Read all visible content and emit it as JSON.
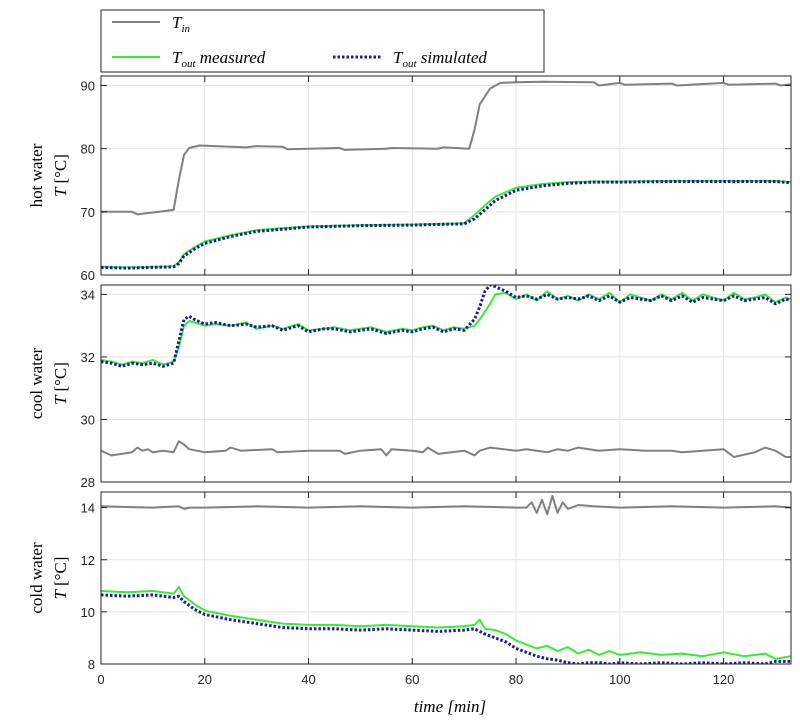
{
  "chart_data": [
    {
      "type": "line",
      "panel": "hot",
      "ylabel": "hot water",
      "ylabel_var": "T",
      "ylabel_unit": "[°C]",
      "ylim": [
        60,
        91.5
      ],
      "yticks": [
        60,
        70,
        80,
        90
      ],
      "xlim": [
        0,
        133
      ],
      "xticks": [
        0,
        20,
        40,
        60,
        80,
        100,
        120
      ],
      "grid": true,
      "series": [
        {
          "name": "T_in",
          "color": "#808080",
          "style": "solid",
          "x": [
            0,
            6,
            7,
            12,
            14,
            15,
            16,
            17,
            19,
            22,
            28,
            30,
            35,
            36,
            46,
            47,
            55,
            56,
            65,
            66,
            71,
            72,
            73,
            75,
            77,
            80,
            85,
            95,
            96,
            100,
            101,
            110,
            111,
            120,
            121,
            130,
            131,
            133
          ],
          "values": [
            70.0,
            70.0,
            69.6,
            70.1,
            70.3,
            75.0,
            79.0,
            80.1,
            80.5,
            80.4,
            80.2,
            80.4,
            80.3,
            79.9,
            80.1,
            79.8,
            80.0,
            80.1,
            80.0,
            80.2,
            80.0,
            83.0,
            87.0,
            89.5,
            90.4,
            90.5,
            90.6,
            90.5,
            90.0,
            90.4,
            90.1,
            90.3,
            90.0,
            90.4,
            90.1,
            90.3,
            90.0,
            90.2
          ]
        },
        {
          "name": "T_out measured",
          "color": "#33ee33",
          "style": "solid",
          "x": [
            0,
            5,
            10,
            14,
            15,
            16,
            18,
            20,
            25,
            30,
            40,
            50,
            60,
            70,
            72,
            74,
            76,
            80,
            85,
            90,
            95,
            100,
            110,
            120,
            130,
            133
          ],
          "values": [
            61.3,
            61.2,
            61.3,
            61.4,
            62.0,
            63.3,
            64.4,
            65.3,
            66.3,
            67.1,
            67.7,
            67.9,
            68.0,
            68.2,
            69.5,
            71.0,
            72.4,
            73.8,
            74.4,
            74.7,
            74.8,
            74.8,
            74.9,
            74.9,
            74.9,
            74.7
          ]
        },
        {
          "name": "T_out simulated",
          "color": "#1a1a9a",
          "style": "dotted",
          "x": [
            0,
            5,
            10,
            14,
            15,
            16,
            18,
            20,
            25,
            30,
            40,
            50,
            60,
            70,
            72,
            74,
            76,
            80,
            85,
            90,
            95,
            100,
            110,
            120,
            130,
            133
          ],
          "values": [
            61.2,
            61.1,
            61.2,
            61.3,
            61.8,
            63.0,
            64.1,
            65.0,
            66.1,
            66.9,
            67.6,
            67.8,
            67.9,
            68.1,
            68.9,
            70.3,
            71.8,
            73.4,
            74.1,
            74.5,
            74.7,
            74.7,
            74.8,
            74.8,
            74.8,
            74.6
          ]
        }
      ]
    },
    {
      "type": "line",
      "panel": "cool",
      "ylabel": "cool water",
      "ylabel_var": "T",
      "ylabel_unit": "[°C]",
      "ylim": [
        28,
        34.3
      ],
      "yticks": [
        28,
        30,
        32,
        34
      ],
      "xlim": [
        0,
        133
      ],
      "xticks": [
        0,
        20,
        40,
        60,
        80,
        100,
        120
      ],
      "grid": true,
      "series": [
        {
          "name": "T_in",
          "color": "#808080",
          "style": "solid",
          "x": [
            0,
            2,
            4,
            6,
            7,
            8,
            9,
            10,
            12,
            14,
            15,
            16,
            17,
            20,
            24,
            25,
            27,
            33,
            34,
            40,
            46,
            47,
            50,
            54,
            55,
            56,
            60,
            62,
            63,
            65,
            70,
            72,
            73,
            75,
            80,
            82,
            86,
            88,
            90,
            92,
            96,
            100,
            105,
            110,
            112,
            116,
            120,
            122,
            126,
            128,
            130,
            132,
            133
          ],
          "values": [
            29.0,
            28.85,
            28.9,
            28.95,
            29.1,
            29.0,
            29.05,
            28.95,
            29.0,
            28.95,
            29.3,
            29.2,
            29.05,
            28.95,
            29.0,
            29.1,
            29.0,
            29.05,
            28.95,
            29.0,
            29.0,
            28.9,
            29.0,
            29.05,
            28.85,
            29.05,
            29.0,
            28.95,
            29.1,
            28.9,
            29.0,
            28.85,
            29.0,
            29.1,
            29.0,
            29.05,
            28.95,
            29.05,
            29.0,
            29.1,
            29.0,
            29.05,
            29.0,
            29.0,
            28.95,
            29.0,
            29.05,
            28.8,
            28.95,
            29.1,
            29.0,
            28.8,
            28.8
          ]
        },
        {
          "name": "T_out measured",
          "color": "#33ee33",
          "style": "solid",
          "x": [
            0,
            2,
            4,
            6,
            8,
            10,
            12,
            14,
            15,
            16,
            17,
            18,
            20,
            22,
            25,
            28,
            30,
            33,
            35,
            38,
            40,
            43,
            45,
            48,
            50,
            52,
            55,
            58,
            60,
            62,
            64,
            66,
            68,
            70,
            72,
            73,
            75,
            76,
            78,
            80,
            82,
            84,
            86,
            88,
            90,
            92,
            94,
            96,
            98,
            100,
            102,
            104,
            106,
            108,
            110,
            112,
            114,
            116,
            118,
            120,
            122,
            124,
            126,
            128,
            130,
            132,
            133
          ],
          "values": [
            31.9,
            31.85,
            31.75,
            31.85,
            31.8,
            31.9,
            31.75,
            31.85,
            32.3,
            33.0,
            33.15,
            33.1,
            33.0,
            33.05,
            33.0,
            33.1,
            32.9,
            33.0,
            32.9,
            33.05,
            32.85,
            32.9,
            32.95,
            32.85,
            32.9,
            32.95,
            32.8,
            32.9,
            32.85,
            32.95,
            33.0,
            32.85,
            32.95,
            32.9,
            33.0,
            33.2,
            33.7,
            34.0,
            34.05,
            33.85,
            34.0,
            33.8,
            34.1,
            33.85,
            33.95,
            33.8,
            34.0,
            33.85,
            34.05,
            33.75,
            34.0,
            33.9,
            33.8,
            34.0,
            33.85,
            34.05,
            33.8,
            34.0,
            33.9,
            33.8,
            34.05,
            33.85,
            33.9,
            34.0,
            33.75,
            33.9,
            33.85
          ]
        },
        {
          "name": "T_out simulated",
          "color": "#1a1a9a",
          "style": "dotted",
          "x": [
            0,
            2,
            4,
            6,
            8,
            10,
            12,
            14,
            15,
            16,
            17,
            18,
            20,
            22,
            25,
            28,
            30,
            33,
            35,
            38,
            40,
            43,
            45,
            48,
            50,
            52,
            55,
            58,
            60,
            62,
            64,
            66,
            68,
            70,
            72,
            73,
            74,
            75,
            76,
            78,
            80,
            82,
            84,
            86,
            88,
            90,
            92,
            94,
            96,
            98,
            100,
            102,
            104,
            106,
            108,
            110,
            112,
            114,
            116,
            118,
            120,
            122,
            124,
            126,
            128,
            130,
            132,
            133
          ],
          "values": [
            31.85,
            31.8,
            31.7,
            31.8,
            31.75,
            31.8,
            31.7,
            31.8,
            32.5,
            33.2,
            33.3,
            33.2,
            33.05,
            33.1,
            33.0,
            33.05,
            32.95,
            33.0,
            32.85,
            33.0,
            32.8,
            32.9,
            32.9,
            32.8,
            32.85,
            32.9,
            32.75,
            32.85,
            32.8,
            32.9,
            32.95,
            32.8,
            32.9,
            32.85,
            33.2,
            33.6,
            34.1,
            34.3,
            34.25,
            34.1,
            33.9,
            33.95,
            33.85,
            34.0,
            33.85,
            33.9,
            33.85,
            33.95,
            33.8,
            33.95,
            33.75,
            33.9,
            33.85,
            33.8,
            33.95,
            33.8,
            33.95,
            33.75,
            33.9,
            33.85,
            33.8,
            33.95,
            33.8,
            33.85,
            33.9,
            33.7,
            33.85,
            33.8
          ]
        }
      ]
    },
    {
      "type": "line",
      "panel": "cold",
      "ylabel": "cold water",
      "ylabel_var": "T",
      "ylabel_unit": "[°C]",
      "ylim": [
        8,
        14.6
      ],
      "yticks": [
        8,
        10,
        12,
        14
      ],
      "xlim": [
        0,
        133
      ],
      "xticks": [
        0,
        20,
        40,
        60,
        80,
        100,
        120
      ],
      "xlabel": "time [min]",
      "grid": true,
      "series": [
        {
          "name": "T_in",
          "color": "#808080",
          "style": "solid",
          "x": [
            0,
            10,
            15,
            16,
            17,
            20,
            30,
            40,
            50,
            60,
            70,
            80,
            82,
            83,
            84,
            85,
            86,
            87,
            88,
            89,
            90,
            92,
            95,
            100,
            110,
            120,
            130,
            133
          ],
          "values": [
            14.05,
            14.0,
            14.05,
            13.95,
            14.0,
            14.0,
            14.05,
            14.0,
            14.05,
            14.0,
            14.05,
            14.0,
            14.0,
            14.2,
            13.8,
            14.3,
            13.75,
            14.45,
            13.8,
            14.2,
            13.95,
            14.1,
            14.05,
            14.0,
            14.05,
            14.0,
            14.05,
            14.0
          ]
        },
        {
          "name": "T_out measured",
          "color": "#33ee33",
          "style": "solid",
          "x": [
            0,
            5,
            10,
            14,
            15,
            16,
            18,
            20,
            25,
            30,
            35,
            40,
            45,
            50,
            55,
            60,
            65,
            70,
            72,
            73,
            74,
            76,
            78,
            80,
            82,
            84,
            86,
            88,
            90,
            92,
            94,
            96,
            98,
            100,
            104,
            108,
            112,
            116,
            120,
            124,
            128,
            130,
            133
          ],
          "values": [
            10.8,
            10.75,
            10.8,
            10.7,
            10.95,
            10.6,
            10.3,
            10.05,
            9.85,
            9.7,
            9.55,
            9.5,
            9.5,
            9.45,
            9.5,
            9.45,
            9.4,
            9.45,
            9.5,
            9.7,
            9.35,
            9.3,
            9.15,
            8.9,
            8.75,
            8.6,
            8.7,
            8.5,
            8.65,
            8.4,
            8.55,
            8.35,
            8.5,
            8.35,
            8.45,
            8.35,
            8.4,
            8.3,
            8.45,
            8.3,
            8.4,
            8.2,
            8.3
          ]
        },
        {
          "name": "T_out simulated",
          "color": "#1a1a9a",
          "style": "dotted",
          "x": [
            0,
            5,
            10,
            14,
            15,
            16,
            18,
            20,
            25,
            30,
            35,
            40,
            45,
            50,
            55,
            60,
            65,
            70,
            72,
            74,
            76,
            78,
            80,
            82,
            84,
            86,
            88,
            90,
            92,
            94,
            96,
            98,
            100,
            104,
            108,
            112,
            116,
            120,
            124,
            128,
            130,
            133
          ],
          "values": [
            10.65,
            10.6,
            10.65,
            10.55,
            10.6,
            10.4,
            10.1,
            9.9,
            9.7,
            9.55,
            9.4,
            9.35,
            9.35,
            9.3,
            9.35,
            9.3,
            9.25,
            9.3,
            9.35,
            9.15,
            9.0,
            8.85,
            8.6,
            8.45,
            8.3,
            8.2,
            8.15,
            8.05,
            8.0,
            8.05,
            8.05,
            8.0,
            8.05,
            8.0,
            8.05,
            8.0,
            8.05,
            8.0,
            8.05,
            8.0,
            8.1,
            8.1
          ]
        }
      ]
    }
  ],
  "legend": {
    "placement": "top-left",
    "entries": [
      {
        "label_main": "T",
        "label_sub": "in",
        "label_rest": "",
        "color": "#808080",
        "style": "solid"
      },
      {
        "label_main": "T",
        "label_sub": "out",
        "label_rest": " measured",
        "color": "#33ee33",
        "style": "solid"
      },
      {
        "label_main": "T",
        "label_sub": "out",
        "label_rest": " simulated",
        "color": "#1a1a9a",
        "style": "dotted"
      }
    ]
  },
  "xlabel": {
    "var": "time",
    "unit": "[min]"
  }
}
